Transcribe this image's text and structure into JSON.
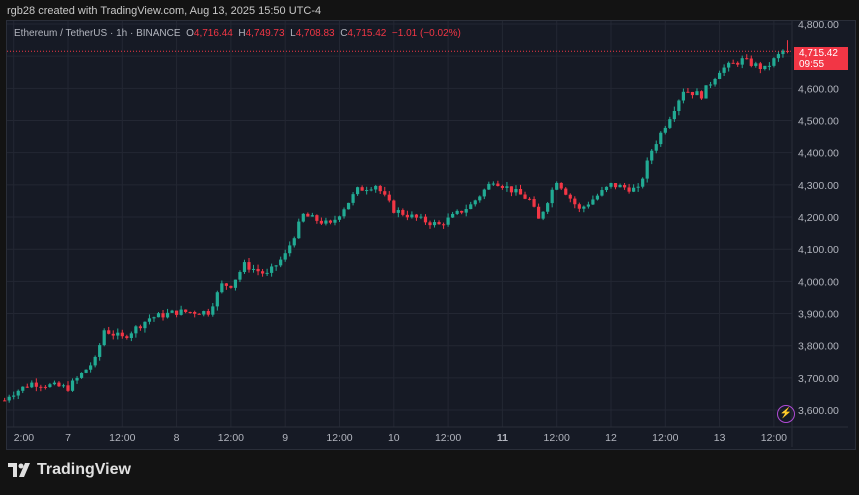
{
  "credit": "rgb28 created with TradingView.com, Aug 13, 2025 15:50 UTC-4",
  "legend": {
    "symbol": "Ethereum / TetherUS · 1h · BINANCE",
    "o_label": "O",
    "o": "4,716.44",
    "h_label": "H",
    "h": "4,749.73",
    "l_label": "L",
    "l": "4,708.83",
    "c_label": "C",
    "c": "4,715.42",
    "change": "−1.01 (−0.02%)"
  },
  "price_tag": {
    "price": "4,715.42",
    "countdown": "09:55"
  },
  "logo_text": "TradingView",
  "colors": {
    "up": "#22ab94",
    "down": "#f23645",
    "background": "#161a25",
    "grid": "#232733"
  },
  "icons": {
    "alert": "lightning-icon"
  },
  "chart_data": {
    "type": "candlestick",
    "interval": "1h",
    "ylim": [
      3570,
      4830
    ],
    "yticks": [
      "4,800.00",
      "4,700.00",
      "4,600.00",
      "4,500.00",
      "4,400.00",
      "4,300.00",
      "4,200.00",
      "4,100.00",
      "4,000.00",
      "3,900.00",
      "3,800.00",
      "3,700.00",
      "3,600.00"
    ],
    "xticks": [
      {
        "label": "2:00",
        "time": "08-06 12:00",
        "bold": false
      },
      {
        "label": "7",
        "time": "08-07 00:00",
        "bold": false
      },
      {
        "label": "12:00",
        "time": "08-07 12:00",
        "bold": false
      },
      {
        "label": "8",
        "time": "08-08 00:00",
        "bold": false
      },
      {
        "label": "12:00",
        "time": "08-08 12:00",
        "bold": false
      },
      {
        "label": "9",
        "time": "08-09 00:00",
        "bold": false
      },
      {
        "label": "12:00",
        "time": "08-09 12:00",
        "bold": false
      },
      {
        "label": "10",
        "time": "08-10 00:00",
        "bold": false
      },
      {
        "label": "12:00",
        "time": "08-10 12:00",
        "bold": false
      },
      {
        "label": "11",
        "time": "08-11 00:00",
        "bold": true
      },
      {
        "label": "12:00",
        "time": "08-11 12:00",
        "bold": false
      },
      {
        "label": "12",
        "time": "08-12 00:00",
        "bold": false
      },
      {
        "label": "12:00",
        "time": "08-12 12:00",
        "bold": false
      },
      {
        "label": "13",
        "time": "08-13 00:00",
        "bold": false
      },
      {
        "label": "12:00",
        "time": "08-13 12:00",
        "bold": false
      }
    ],
    "approx_close_path": [
      [
        "08-06 10:00",
        3630
      ],
      [
        "08-06 11:00",
        3647
      ],
      [
        "08-06 16:00",
        3684
      ],
      [
        "08-07 00:00",
        3669
      ],
      [
        "08-07 06:00",
        3755
      ],
      [
        "08-07 08:00",
        3849
      ],
      [
        "08-07 12:00",
        3824
      ],
      [
        "08-07 18:00",
        3886
      ],
      [
        "08-08 00:00",
        3905
      ],
      [
        "08-08 07:00",
        3905
      ],
      [
        "08-08 10:00",
        3989
      ],
      [
        "08-08 12:00",
        3989
      ],
      [
        "08-08 15:00",
        4051
      ],
      [
        "08-08 20:00",
        4020
      ],
      [
        "08-09 00:00",
        4082
      ],
      [
        "08-09 04:00",
        4206
      ],
      [
        "08-09 10:00",
        4175
      ],
      [
        "08-09 16:00",
        4284
      ],
      [
        "08-09 20:00",
        4300
      ],
      [
        "08-10 00:00",
        4222
      ],
      [
        "08-10 06:00",
        4191
      ],
      [
        "08-10 10:00",
        4175
      ],
      [
        "08-10 17:00",
        4237
      ],
      [
        "08-10 22:00",
        4315
      ],
      [
        "08-11 06:00",
        4253
      ],
      [
        "08-11 08:00",
        4191
      ],
      [
        "08-11 12:00",
        4315
      ],
      [
        "08-11 17:00",
        4222
      ],
      [
        "08-12 00:00",
        4300
      ],
      [
        "08-12 06:00",
        4284
      ],
      [
        "08-12 09:00",
        4408
      ],
      [
        "08-12 12:00",
        4486
      ],
      [
        "08-12 16:00",
        4595
      ],
      [
        "08-12 20:00",
        4579
      ],
      [
        "08-13 00:00",
        4657
      ],
      [
        "08-13 05:00",
        4688
      ],
      [
        "08-13 10:00",
        4660
      ],
      [
        "08-13 14:00",
        4716
      ]
    ],
    "last_candle": {
      "time": "08-13 15:00",
      "open": 4716.44,
      "high": 4749.73,
      "low": 4708.83,
      "close": 4715.42
    }
  }
}
